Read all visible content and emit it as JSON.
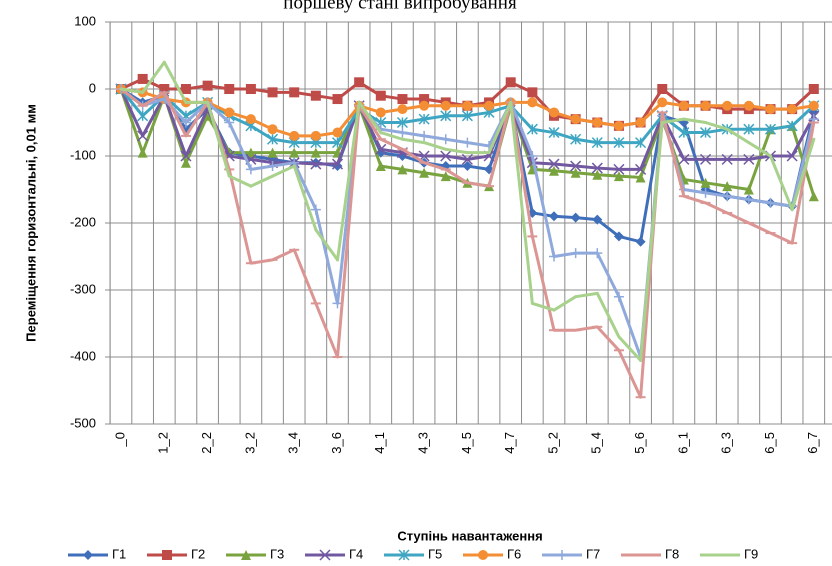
{
  "chart_data": {
    "type": "line",
    "title": "поршеву стані випробування",
    "x_label": "Ступінь навантаження",
    "y_label": "Переміщення горизонтальні, 0,01 мм",
    "categories": [
      "_0",
      null,
      "1_2",
      null,
      "2_2",
      null,
      "3_2",
      null,
      "3_4",
      null,
      "3_6",
      null,
      "4_1",
      null,
      "4_3",
      null,
      "4_5",
      null,
      "4_7",
      null,
      "5_2",
      null,
      "5_4",
      null,
      "5_6",
      null,
      "6_1",
      null,
      "6_3",
      null,
      "6_5",
      null,
      "6_7"
    ],
    "ylim": [
      -500,
      100
    ],
    "yticks": [
      -500,
      -400,
      -300,
      -200,
      -100,
      0,
      100
    ],
    "grid": true,
    "legend": "bottom",
    "series": [
      {
        "name": "Г1",
        "color": "#3f6fba",
        "marker": "diamond",
        "values": [
          0,
          -20,
          -10,
          -60,
          -30,
          -95,
          -100,
          -105,
          -110,
          -110,
          -115,
          -25,
          -95,
          -100,
          -110,
          -115,
          -115,
          -120,
          -25,
          -185,
          -190,
          -192,
          -195,
          -220,
          -228,
          -40,
          -50,
          -150,
          -160,
          -165,
          -170,
          -175,
          -35
        ]
      },
      {
        "name": "Г2",
        "color": "#be4b48",
        "marker": "square",
        "values": [
          0,
          15,
          0,
          0,
          5,
          0,
          0,
          -5,
          -5,
          -10,
          -15,
          10,
          -10,
          -15,
          -15,
          -20,
          -25,
          -20,
          10,
          -5,
          -40,
          -45,
          -50,
          -55,
          -50,
          0,
          -25,
          -25,
          -30,
          -30,
          -30,
          -30,
          0
        ]
      },
      {
        "name": "Г3",
        "color": "#79a33e",
        "marker": "triangle",
        "values": [
          0,
          -95,
          -10,
          -110,
          -40,
          -95,
          -95,
          -95,
          -95,
          -95,
          -95,
          -25,
          -115,
          -120,
          -125,
          -130,
          -140,
          -145,
          -25,
          -120,
          -122,
          -125,
          -128,
          -130,
          -132,
          -45,
          -135,
          -140,
          -145,
          -150,
          -60,
          -55,
          -160
        ]
      },
      {
        "name": "Г4",
        "color": "#7158a0",
        "marker": "x",
        "values": [
          0,
          -70,
          -10,
          -100,
          -30,
          -100,
          -105,
          -110,
          -110,
          -112,
          -112,
          -25,
          -90,
          -95,
          -100,
          -100,
          -105,
          -100,
          -25,
          -110,
          -112,
          -115,
          -118,
          -120,
          -120,
          -40,
          -105,
          -105,
          -105,
          -105,
          -100,
          -100,
          -40
        ]
      },
      {
        "name": "Г5",
        "color": "#3ea6c2",
        "marker": "star",
        "values": [
          0,
          -40,
          -10,
          -40,
          -20,
          -40,
          -55,
          -75,
          -80,
          -80,
          -80,
          -30,
          -50,
          -50,
          -45,
          -40,
          -40,
          -35,
          -25,
          -60,
          -65,
          -75,
          -80,
          -80,
          -80,
          -40,
          -65,
          -65,
          -60,
          -60,
          -60,
          -55,
          -25
        ]
      },
      {
        "name": "Г6",
        "color": "#f38e34",
        "marker": "circle",
        "values": [
          0,
          -5,
          -15,
          -20,
          -20,
          -35,
          -45,
          -60,
          -70,
          -70,
          -65,
          -25,
          -35,
          -30,
          -25,
          -25,
          -25,
          -25,
          -20,
          -20,
          -35,
          -45,
          -50,
          -55,
          -50,
          -20,
          -25,
          -25,
          -25,
          -25,
          -30,
          -30,
          -25
        ]
      },
      {
        "name": "Г7",
        "color": "#8fa9dc",
        "marker": "plus",
        "values": [
          0,
          -25,
          -15,
          -50,
          -20,
          -50,
          -120,
          -115,
          -110,
          -180,
          -320,
          -25,
          -60,
          -65,
          -70,
          -75,
          -80,
          -85,
          -20,
          -100,
          -250,
          -245,
          -245,
          -310,
          -400,
          -40,
          -150,
          -155,
          -160,
          -165,
          -170,
          -175,
          -45
        ]
      },
      {
        "name": "Г8",
        "color": "#db9593",
        "marker": "dash",
        "values": [
          0,
          -25,
          -5,
          -70,
          -20,
          -120,
          -260,
          -255,
          -240,
          -320,
          -400,
          -25,
          -75,
          -90,
          -110,
          -120,
          -140,
          -145,
          -20,
          -220,
          -360,
          -360,
          -355,
          -390,
          -460,
          -35,
          -160,
          -170,
          -185,
          -200,
          -215,
          -230,
          -50
        ]
      },
      {
        "name": "Г9",
        "color": "#a8d18c",
        "marker": "none",
        "values": [
          0,
          -5,
          40,
          -20,
          -20,
          -130,
          -145,
          -130,
          -115,
          -210,
          -255,
          -20,
          -65,
          -75,
          -80,
          -90,
          -95,
          -95,
          -20,
          -320,
          -330,
          -310,
          -305,
          -370,
          -405,
          -50,
          -45,
          -50,
          -60,
          -80,
          -100,
          -180,
          -75
        ]
      }
    ]
  }
}
